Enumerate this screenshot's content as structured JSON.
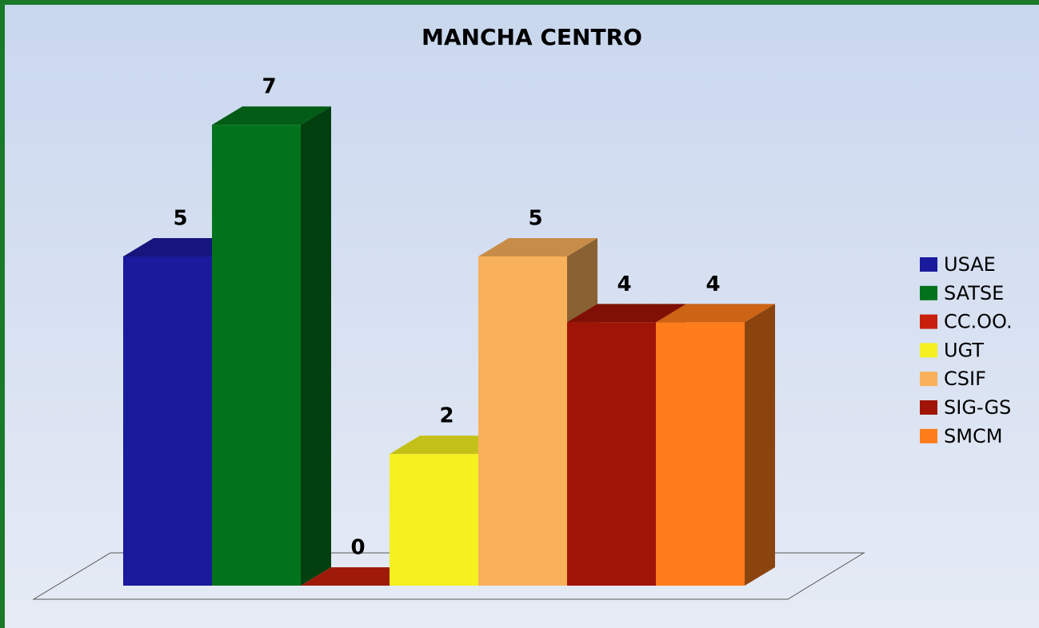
{
  "chart_data": {
    "type": "bar3d",
    "title": "MANCHA CENTRO",
    "series": [
      {
        "name": "USAE",
        "color": "#1a1a9c",
        "values": [
          5
        ]
      },
      {
        "name": "SATSE",
        "color": "#02731c",
        "values": [
          7
        ]
      },
      {
        "name": "CC.OO.",
        "color": "#c8200c",
        "values": [
          0
        ]
      },
      {
        "name": "UGT",
        "color": "#f5f020",
        "values": [
          2
        ]
      },
      {
        "name": "CSIF",
        "color": "#f9b05a",
        "values": [
          5
        ]
      },
      {
        "name": "SIG-GS",
        "color": "#a01408",
        "values": [
          4
        ]
      },
      {
        "name": "SMCM",
        "color": "#ff7c1a",
        "values": [
          4
        ]
      }
    ],
    "legend": "right"
  }
}
